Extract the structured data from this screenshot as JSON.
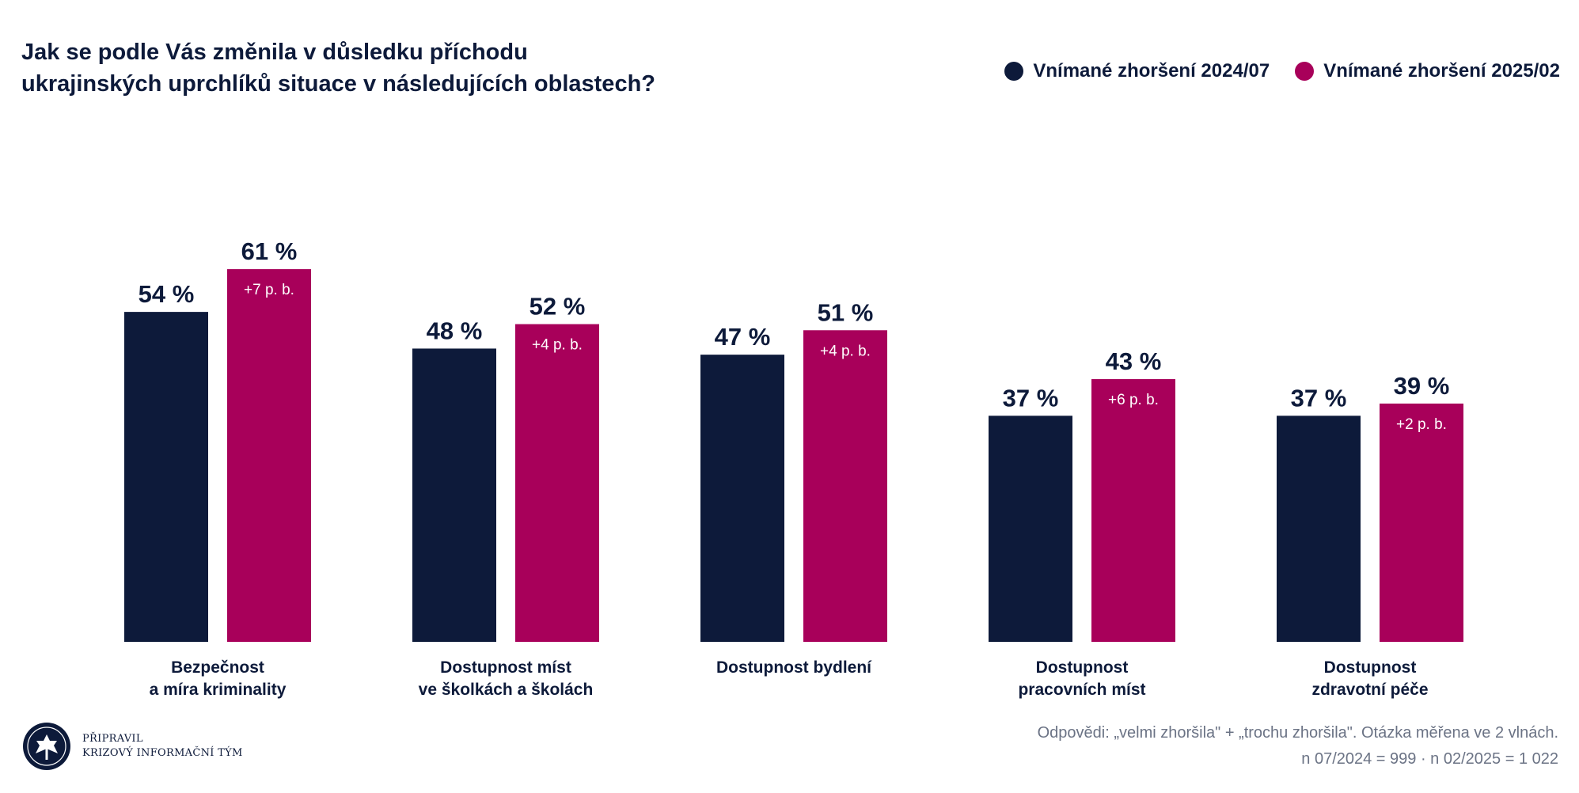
{
  "title_lines": [
    "Jak se podle Vás změnila v důsledku příchodu",
    "ukrajinských uprchlíků situace v následujících oblastech?"
  ],
  "legend": [
    {
      "label": "Vnímané zhoršení 2024/07",
      "color": "#0d1a3a"
    },
    {
      "label": "Vnímané zhoršení 2025/02",
      "color": "#a8005a"
    }
  ],
  "chart_data": {
    "type": "bar",
    "title": "Jak se podle Vás změnila v důsledku příchodu ukrajinských uprchlíků situace v následujících oblastech?",
    "categories": [
      [
        "Bezpečnost",
        "a míra kriminality"
      ],
      [
        "Dostupnost míst",
        "ve školkách a školách"
      ],
      [
        "Dostupnost bydlení"
      ],
      [
        "Dostupnost",
        "pracovních míst"
      ],
      [
        "Dostupnost",
        "zdravotní péče"
      ]
    ],
    "series": [
      {
        "name": "Vnímané zhoršení 2024/07",
        "color": "#0d1a3a",
        "values": [
          54,
          48,
          47,
          37,
          37
        ],
        "labels": [
          "54 %",
          "48 %",
          "47 %",
          "37 %",
          "37 %"
        ]
      },
      {
        "name": "Vnímané zhoršení 2025/02",
        "color": "#a8005a",
        "values": [
          61,
          52,
          51,
          43,
          39
        ],
        "labels": [
          "61 %",
          "52 %",
          "51 %",
          "43 %",
          "39 %"
        ]
      }
    ],
    "change_labels": [
      "+7 p. b.",
      "+4 p. b.",
      "+4 p. b.",
      "+6 p. b.",
      "+2 p. b."
    ],
    "ylim": [
      0,
      100
    ],
    "grid": false,
    "legend_position": "top-right"
  },
  "footnote": {
    "line1": "Odpovědi: „velmi zhoršila\" + „trochu zhoršila\". Otázka měřena ve 2 vlnách.",
    "line2": "n 07/2024 = 999 · n 02/2025 = 1 022"
  },
  "credit": {
    "line1": "PŘIPRAVIL",
    "line2": "KRIZOVÝ INFORMAČNÍ TÝM"
  }
}
